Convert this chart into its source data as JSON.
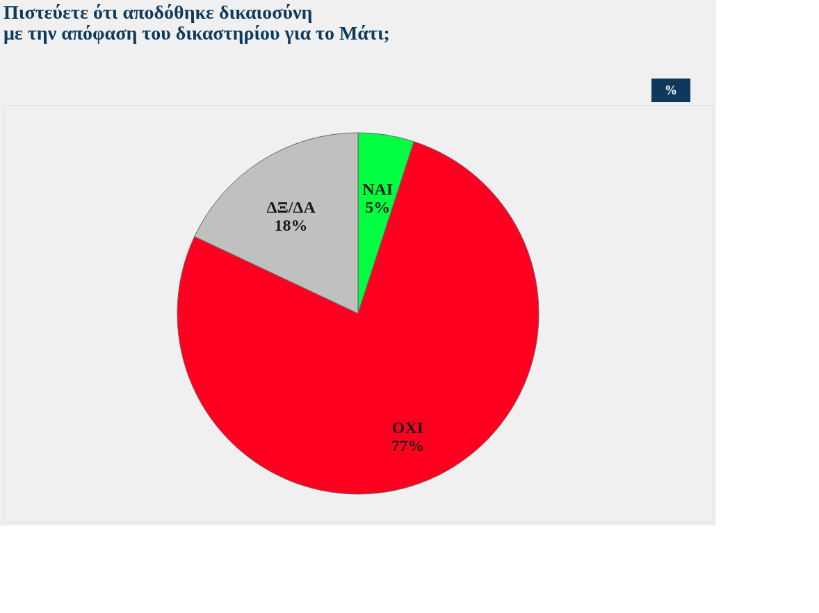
{
  "chart_data": {
    "type": "pie",
    "title": "Πιστεύετε ότι αποδόθηκε δικαιοσύνη\nμε την απόφαση του δικαστηρίου για το Μάτι;",
    "categories": [
      "ΝΑΙ",
      "ΟΧΙ",
      "ΔΞ/ΔΑ"
    ],
    "values": [
      5,
      77,
      18
    ],
    "colors": [
      "#00ff40",
      "#ff0020",
      "#c0c0c0"
    ],
    "value_labels": [
      "5%",
      "77%",
      "18%"
    ],
    "annotations": [
      "%"
    ],
    "legend": false
  }
}
